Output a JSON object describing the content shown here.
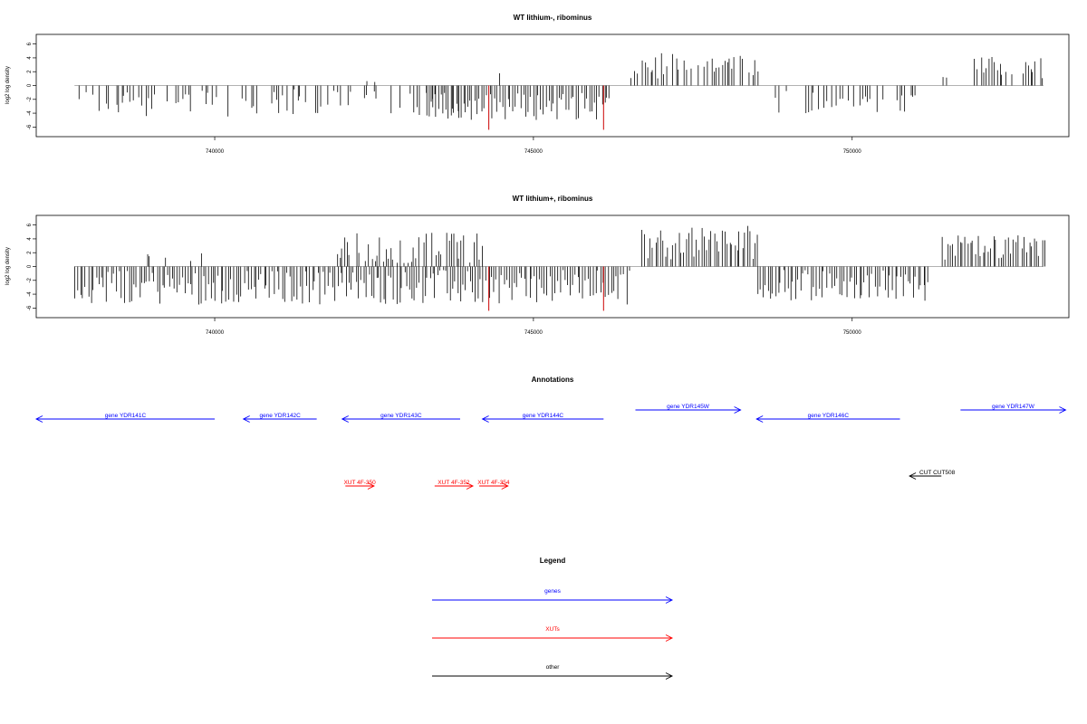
{
  "colors": {
    "gene": "#0000ff",
    "xut": "#ff0000",
    "other": "#000000",
    "highlight": "#cc0000",
    "baseline": "#999999"
  },
  "panels": [
    {
      "title": "WT lithium-, ribominus",
      "ylabel": "log2 log density"
    },
    {
      "title": "WT lithium+, ribominus",
      "ylabel": "log2 log density"
    }
  ],
  "chart_data": [
    {
      "type": "bar",
      "title": "WT lithium-, ribominus",
      "xlabel": "",
      "ylabel": "log2 log density",
      "xlim": [
        737200,
        753400
      ],
      "ylim": [
        -7,
        7
      ],
      "x_ticks": [
        740000,
        745000,
        750000
      ],
      "x_tick_labels": [
        "740000",
        "745000",
        "750000"
      ],
      "y_ticks": [
        -6,
        -4,
        -2,
        0,
        2,
        4,
        6
      ],
      "y_tick_labels": [
        "-6",
        "-4",
        "-2",
        "0",
        "2",
        "4",
        "6"
      ],
      "grid": false,
      "series": [
        {
          "strand": "minus",
          "x_range": [
            737800,
            743900
          ],
          "y_range": [
            -4.5,
            -0.5
          ],
          "density": 0.5
        },
        {
          "strand": "plus",
          "x_range": [
            742000,
            742700
          ],
          "y_range": [
            0.3,
            2.4
          ],
          "density": 0.2
        },
        {
          "strand": "minus",
          "x_range": [
            743300,
            746200
          ],
          "y_range": [
            -5,
            -1
          ],
          "density": 1.0
        },
        {
          "strand": "plus",
          "x_range": [
            744300,
            744600
          ],
          "y_range": [
            0.3,
            2
          ],
          "density": 0.3
        },
        {
          "strand": "plus",
          "x_range": [
            746500,
            748500
          ],
          "y_range": [
            1,
            4.7
          ],
          "density": 0.85
        },
        {
          "strand": "minus",
          "x_range": [
            748700,
            751000
          ],
          "y_range": [
            -4,
            -0.5
          ],
          "density": 0.5
        },
        {
          "strand": "plus",
          "x_range": [
            751400,
            751500
          ],
          "y_range": [
            1,
            3
          ],
          "density": 0.5
        },
        {
          "strand": "plus",
          "x_range": [
            751900,
            753000
          ],
          "y_range": [
            1,
            4.2
          ],
          "density": 0.7
        }
      ],
      "highlights": [
        {
          "x": 744300,
          "y": -6.4
        },
        {
          "x": 746100,
          "y": -6.4
        }
      ]
    },
    {
      "type": "bar",
      "title": "WT lithium+, ribominus",
      "xlabel": "",
      "ylabel": "log2 log density",
      "xlim": [
        737200,
        753400
      ],
      "ylim": [
        -7,
        7
      ],
      "x_ticks": [
        740000,
        745000,
        750000
      ],
      "x_tick_labels": [
        "740000",
        "745000",
        "750000"
      ],
      "y_ticks": [
        -6,
        -4,
        -2,
        0,
        2,
        4,
        6
      ],
      "y_tick_labels": [
        "-6",
        "-4",
        "-2",
        "0",
        "2",
        "4",
        "6"
      ],
      "grid": false,
      "series": [
        {
          "strand": "minus",
          "x_range": [
            737800,
            746500
          ],
          "y_range": [
            -5.5,
            -0.5
          ],
          "density": 1.0
        },
        {
          "strand": "plus",
          "x_range": [
            737800,
            740000
          ],
          "y_range": [
            0.5,
            2.2
          ],
          "density": 0.05
        },
        {
          "strand": "plus",
          "x_range": [
            741900,
            744200
          ],
          "y_range": [
            0.5,
            5
          ],
          "density": 0.8
        },
        {
          "strand": "plus",
          "x_range": [
            746700,
            748500
          ],
          "y_range": [
            1,
            6
          ],
          "density": 1.0
        },
        {
          "strand": "minus",
          "x_range": [
            748500,
            751200
          ],
          "y_range": [
            -5,
            -0.5
          ],
          "density": 1.0
        },
        {
          "strand": "plus",
          "x_range": [
            751400,
            753000
          ],
          "y_range": [
            1,
            4.5
          ],
          "density": 1.0
        }
      ],
      "highlights": [
        {
          "x": 744300,
          "y": -6.4
        },
        {
          "x": 746100,
          "y": -6.4
        }
      ]
    }
  ],
  "annotations": {
    "title": "Annotations",
    "genes": [
      {
        "label": "gene YDR141C",
        "start": 737200,
        "end": 740000,
        "strand": "-"
      },
      {
        "label": "gene YDR142C",
        "start": 740450,
        "end": 741600,
        "strand": "-"
      },
      {
        "label": "gene YDR143C",
        "start": 742000,
        "end": 743850,
        "strand": "-"
      },
      {
        "label": "gene YDR144C",
        "start": 744200,
        "end": 746100,
        "strand": "-"
      },
      {
        "label": "gene YDR145W",
        "start": 746600,
        "end": 748250,
        "strand": "+"
      },
      {
        "label": "gene YDR146C",
        "start": 748500,
        "end": 750750,
        "strand": "-"
      },
      {
        "label": "gene YDR147W",
        "start": 751700,
        "end": 753350,
        "strand": "+"
      }
    ],
    "xuts": [
      {
        "label": "XUT 4F-350",
        "start": 742050,
        "end": 742500,
        "strand": "+"
      },
      {
        "label": "XUT 4F-352",
        "start": 743450,
        "end": 744050,
        "strand": "+"
      },
      {
        "label": "XUT 4F-354",
        "start": 744150,
        "end": 744600,
        "strand": "+"
      }
    ],
    "others": [
      {
        "label": "CUT CUT508",
        "start": 750900,
        "end": 751400,
        "strand": "-"
      }
    ]
  },
  "legend": {
    "title": "Legend",
    "items": [
      {
        "label": "genes",
        "kind": "gene"
      },
      {
        "label": "XUTs",
        "kind": "xut"
      },
      {
        "label": "other",
        "kind": "other"
      }
    ]
  }
}
